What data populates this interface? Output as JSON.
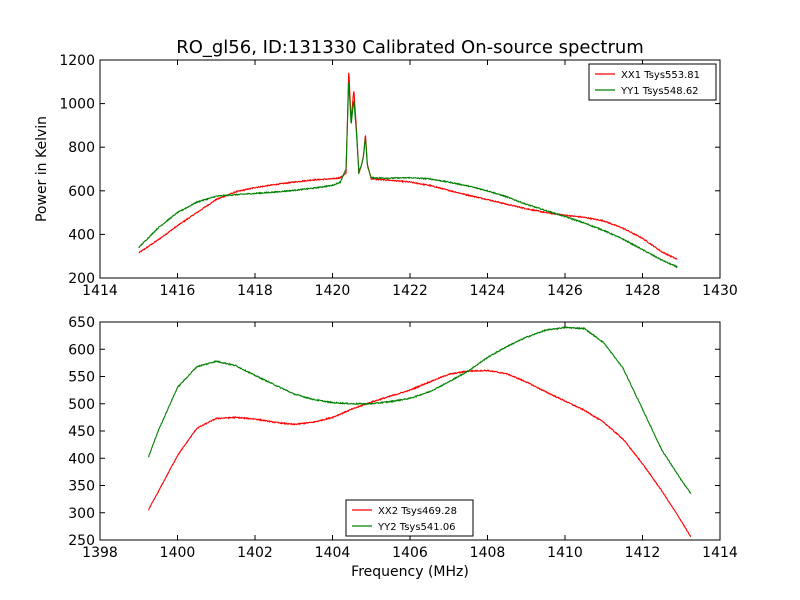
{
  "chart_data": [
    {
      "type": "line",
      "title": "RO_gl56, ID:131330 Calibrated On-source spectrum",
      "xlabel": "",
      "ylabel": "Power in Kelvin",
      "xlim": [
        1414,
        1430
      ],
      "ylim": [
        200,
        1200
      ],
      "xticks": [
        "1414",
        "1416",
        "1418",
        "1420",
        "1422",
        "1424",
        "1426",
        "1428",
        "1430"
      ],
      "yticks": [
        "200",
        "400",
        "600",
        "800",
        "1000",
        "1200"
      ],
      "legend_position": "upper right",
      "series": [
        {
          "name": "XX1 Tsys553.81",
          "color": "#ff0000",
          "x": [
            1415.0,
            1415.5,
            1416.0,
            1416.5,
            1417.0,
            1417.5,
            1418.0,
            1418.5,
            1419.0,
            1419.5,
            1420.0,
            1420.2,
            1420.35,
            1420.42,
            1420.48,
            1420.55,
            1420.62,
            1420.68,
            1420.75,
            1420.8,
            1420.85,
            1420.9,
            1421.0,
            1421.2,
            1421.5,
            1422.0,
            1422.5,
            1423.0,
            1423.5,
            1424.0,
            1424.5,
            1425.0,
            1425.5,
            1426.0,
            1426.5,
            1427.0,
            1427.5,
            1428.0,
            1428.5,
            1428.9
          ],
          "y": [
            315,
            375,
            440,
            500,
            560,
            595,
            615,
            628,
            640,
            650,
            655,
            660,
            680,
            1160,
            920,
            1065,
            880,
            680,
            720,
            760,
            860,
            720,
            655,
            652,
            648,
            640,
            625,
            602,
            580,
            560,
            538,
            518,
            500,
            488,
            478,
            462,
            428,
            382,
            320,
            285
          ]
        },
        {
          "name": "YY1 Tsys548.62",
          "color": "#008000",
          "x": [
            1415.0,
            1415.5,
            1416.0,
            1416.5,
            1417.0,
            1417.5,
            1418.0,
            1418.5,
            1419.0,
            1419.5,
            1420.0,
            1420.2,
            1420.35,
            1420.42,
            1420.48,
            1420.55,
            1420.62,
            1420.68,
            1420.75,
            1420.8,
            1420.85,
            1420.9,
            1421.0,
            1421.5,
            1422.0,
            1422.5,
            1423.0,
            1423.5,
            1424.0,
            1424.5,
            1425.0,
            1425.5,
            1426.0,
            1426.5,
            1427.0,
            1427.5,
            1428.0,
            1428.5,
            1428.9
          ],
          "y": [
            340,
            430,
            500,
            548,
            575,
            582,
            588,
            594,
            602,
            612,
            625,
            640,
            700,
            1110,
            900,
            1020,
            860,
            685,
            720,
            760,
            845,
            715,
            660,
            658,
            660,
            655,
            640,
            622,
            600,
            572,
            538,
            510,
            482,
            452,
            418,
            378,
            330,
            282,
            250
          ]
        }
      ]
    },
    {
      "type": "line",
      "title": "",
      "xlabel": "Frequency (MHz)",
      "ylabel": "",
      "xlim": [
        1398,
        1414
      ],
      "ylim": [
        250,
        650
      ],
      "xticks": [
        "1398",
        "1400",
        "1402",
        "1404",
        "1406",
        "1408",
        "1410",
        "1412",
        "1414"
      ],
      "yticks": [
        "250",
        "300",
        "350",
        "400",
        "450",
        "500",
        "550",
        "600",
        "650"
      ],
      "legend_position": "lower center",
      "series": [
        {
          "name": "XX2 Tsys469.28",
          "color": "#ff0000",
          "x": [
            1399.25,
            1399.5,
            1400.0,
            1400.5,
            1401.0,
            1401.5,
            1402.0,
            1402.5,
            1403.0,
            1403.5,
            1404.0,
            1404.5,
            1405.0,
            1405.5,
            1406.0,
            1406.5,
            1407.0,
            1407.5,
            1408.0,
            1408.5,
            1409.0,
            1409.5,
            1410.0,
            1410.5,
            1411.0,
            1411.5,
            1412.0,
            1412.5,
            1413.0,
            1413.25
          ],
          "y": [
            305,
            338,
            405,
            455,
            473,
            475,
            472,
            466,
            462,
            466,
            475,
            490,
            503,
            514,
            525,
            540,
            554,
            560,
            561,
            555,
            540,
            522,
            505,
            488,
            466,
            435,
            390,
            340,
            285,
            255
          ]
        },
        {
          "name": "YY2 Tsys541.06",
          "color": "#008000",
          "x": [
            1399.25,
            1399.5,
            1400.0,
            1400.5,
            1401.0,
            1401.5,
            1402.0,
            1402.5,
            1403.0,
            1403.5,
            1404.0,
            1404.5,
            1405.0,
            1405.5,
            1406.0,
            1406.5,
            1407.0,
            1407.5,
            1408.0,
            1408.5,
            1409.0,
            1409.5,
            1410.0,
            1410.5,
            1411.0,
            1411.5,
            1412.0,
            1412.5,
            1413.0,
            1413.25
          ],
          "y": [
            402,
            450,
            530,
            568,
            578,
            570,
            552,
            535,
            518,
            508,
            502,
            500,
            500,
            504,
            510,
            522,
            540,
            560,
            585,
            605,
            622,
            635,
            640,
            638,
            612,
            565,
            490,
            415,
            360,
            335
          ]
        }
      ]
    }
  ]
}
